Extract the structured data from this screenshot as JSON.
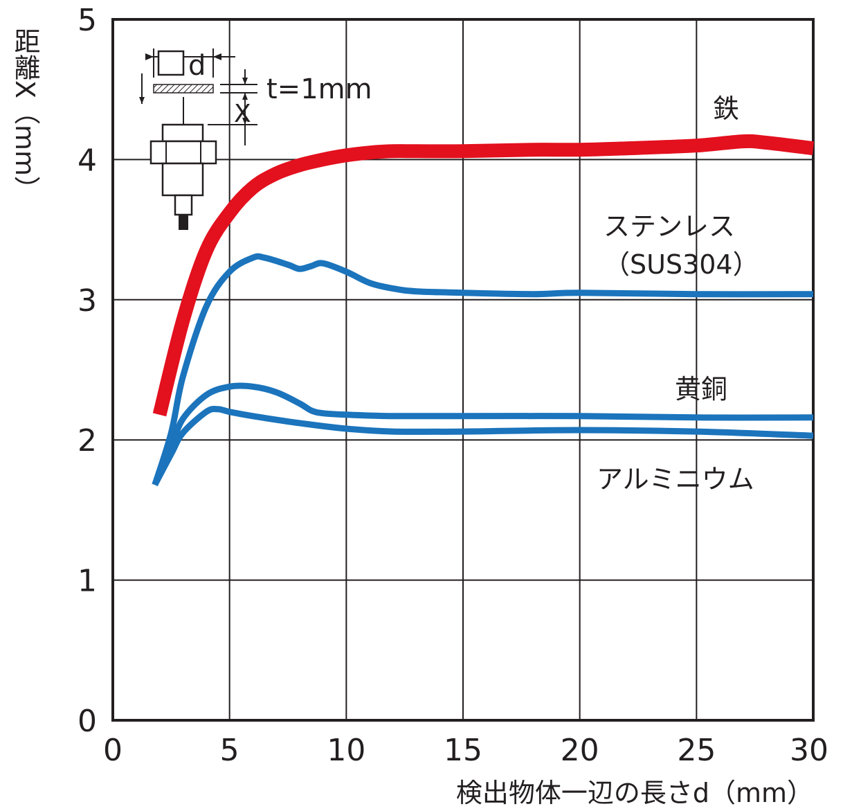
{
  "chart_data": {
    "type": "line",
    "title": "",
    "xlabel": "検出物体一辺の長さd（mm）",
    "ylabel": "距離X（mm）",
    "xlim": [
      0,
      30
    ],
    "ylim": [
      0,
      5
    ],
    "x_ticks": [
      "0",
      "5",
      "10",
      "15",
      "20",
      "25",
      "30"
    ],
    "y_ticks": [
      "0",
      "1",
      "2",
      "3",
      "4",
      "5"
    ],
    "grid": true,
    "legend": "inline labels at right",
    "series": [
      {
        "name": "鉄",
        "color": "#e3101e",
        "x": [
          2,
          3,
          4,
          5,
          6,
          7,
          8,
          9,
          10,
          11,
          12,
          13,
          15,
          18,
          20,
          22,
          25,
          27,
          28,
          30
        ],
        "y": [
          2.18,
          2.85,
          3.35,
          3.62,
          3.8,
          3.9,
          3.96,
          4.0,
          4.03,
          4.05,
          4.06,
          4.06,
          4.06,
          4.07,
          4.07,
          4.08,
          4.1,
          4.13,
          4.12,
          4.08
        ]
      },
      {
        "name": "ステンレス（SUS304）",
        "name_lines": [
          "ステンレス",
          "（SUS304）"
        ],
        "color": "#1b74bc",
        "x": [
          1.8,
          2.5,
          3,
          4,
          5,
          6,
          6.5,
          7.5,
          8,
          8.5,
          9,
          10,
          11,
          12,
          13,
          15,
          18,
          20,
          25,
          30
        ],
        "y": [
          1.68,
          2.05,
          2.45,
          2.95,
          3.2,
          3.3,
          3.3,
          3.25,
          3.22,
          3.24,
          3.26,
          3.2,
          3.12,
          3.08,
          3.06,
          3.05,
          3.04,
          3.05,
          3.04,
          3.04
        ]
      },
      {
        "name": "黄銅",
        "color": "#1b74bc",
        "x": [
          1.8,
          2.5,
          3,
          4,
          5,
          6,
          7,
          8,
          8.5,
          9,
          10,
          12,
          15,
          20,
          25,
          30
        ],
        "y": [
          1.68,
          1.95,
          2.15,
          2.32,
          2.38,
          2.38,
          2.34,
          2.26,
          2.21,
          2.19,
          2.18,
          2.17,
          2.17,
          2.17,
          2.16,
          2.16
        ]
      },
      {
        "name": "アルミニウム",
        "color": "#1b74bc",
        "x": [
          1.8,
          2.5,
          3,
          4,
          4.5,
          5,
          6,
          8,
          10,
          12,
          15,
          20,
          25,
          30
        ],
        "y": [
          1.68,
          1.9,
          2.05,
          2.2,
          2.22,
          2.2,
          2.17,
          2.12,
          2.08,
          2.06,
          2.06,
          2.07,
          2.06,
          2.03
        ]
      }
    ],
    "annotations": {
      "inset_d_label": "□d",
      "inset_t_label": "t=1mm",
      "inset_x_label": "X"
    }
  }
}
